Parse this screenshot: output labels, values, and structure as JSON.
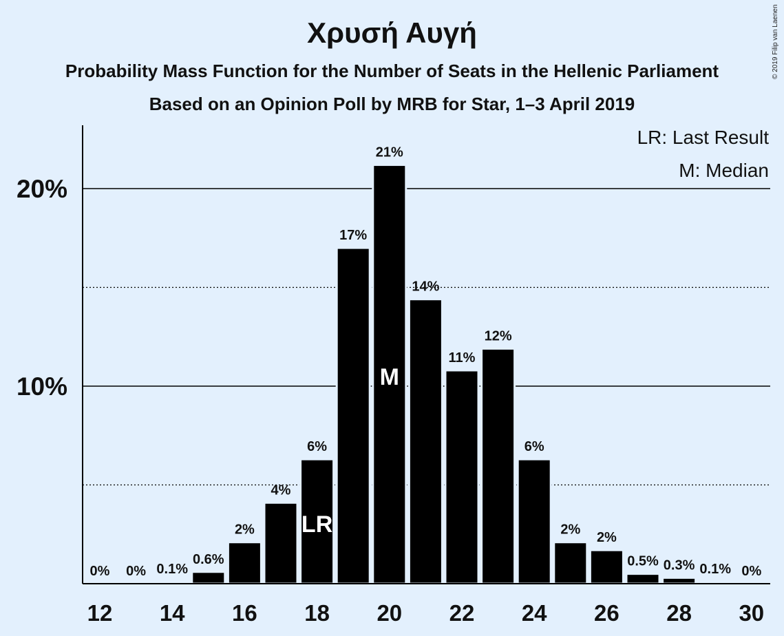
{
  "title": "Χρυσή Αυγή",
  "subtitle": "Probability Mass Function for the Number of Seats in the Hellenic Parliament",
  "subtitle2": "Based on an Opinion Poll by MRB for Star, 1–3 April 2019",
  "copyright": "© 2019 Filip van Laenen",
  "colors": {
    "background": "#e3f0fd",
    "bar": "#000000",
    "text": "#111111"
  },
  "chart_data": {
    "type": "bar",
    "x": [
      12,
      13,
      14,
      15,
      16,
      17,
      18,
      19,
      20,
      21,
      22,
      23,
      24,
      25,
      26,
      27,
      28,
      29,
      30
    ],
    "values": [
      0,
      0,
      0.1,
      0.6,
      2.1,
      4.1,
      6.3,
      17.0,
      21.2,
      14.4,
      10.8,
      11.9,
      6.3,
      2.1,
      1.7,
      0.5,
      0.3,
      0.1,
      0
    ],
    "value_labels": [
      "0%",
      "0%",
      "0.1%",
      "0.6%",
      "2%",
      "4%",
      "6%",
      "17%",
      "21%",
      "14%",
      "11%",
      "12%",
      "6%",
      "2%",
      "2%",
      "0.5%",
      "0.3%",
      "0.1%",
      "0%"
    ],
    "x_tick_labels": [
      "12",
      "14",
      "16",
      "18",
      "20",
      "22",
      "24",
      "26",
      "28",
      "30"
    ],
    "x_ticks": [
      12,
      14,
      16,
      18,
      20,
      22,
      24,
      26,
      28,
      30
    ],
    "y_tick_labels": [
      "10%",
      "20%"
    ],
    "y_ticks": [
      10,
      20
    ],
    "y_dotted_gridlines": [
      5,
      15
    ],
    "ylim": [
      0,
      23.2
    ],
    "xlabel": "",
    "ylabel": "",
    "annotations": [
      {
        "x": 18,
        "label": "LR"
      },
      {
        "x": 20,
        "label": "M"
      }
    ],
    "legend": [
      "LR: Last Result",
      "M: Median"
    ],
    "legend_position": "top-right"
  }
}
